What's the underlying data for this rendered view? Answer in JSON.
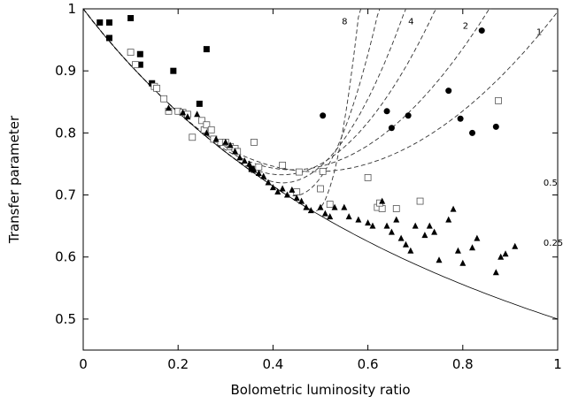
{
  "chart_data": {
    "type": "scatter",
    "title": "",
    "xlabel": "Bolometric luminosity ratio",
    "ylabel": "Transfer parameter",
    "xlim": [
      0,
      1
    ],
    "ylim": [
      0.45,
      1.0
    ],
    "x_ticks": [
      0,
      0.2,
      0.4,
      0.6,
      0.8,
      1
    ],
    "x_tick_labels": [
      "0",
      "0.2",
      "0.4",
      "0.6",
      "0.8",
      "1"
    ],
    "y_ticks": [
      0.5,
      0.6,
      0.7,
      0.8,
      0.9,
      1
    ],
    "y_tick_labels": [
      "0.5",
      "0.6",
      "0.7",
      "0.8",
      "0.9",
      "1"
    ],
    "grid": false,
    "series": [
      {
        "marker": "filled-square",
        "points": [
          [
            0.035,
            0.978
          ],
          [
            0.055,
            0.978
          ],
          [
            0.1,
            0.985
          ],
          [
            0.055,
            0.953
          ],
          [
            0.12,
            0.927
          ],
          [
            0.12,
            0.91
          ],
          [
            0.26,
            0.935
          ],
          [
            0.19,
            0.9
          ],
          [
            0.145,
            0.88
          ],
          [
            0.245,
            0.847
          ],
          [
            0.355,
            0.742
          ]
        ]
      },
      {
        "marker": "open-square",
        "points": [
          [
            0.1,
            0.93
          ],
          [
            0.11,
            0.91
          ],
          [
            0.15,
            0.875
          ],
          [
            0.155,
            0.872
          ],
          [
            0.17,
            0.855
          ],
          [
            0.18,
            0.835
          ],
          [
            0.2,
            0.835
          ],
          [
            0.21,
            0.833
          ],
          [
            0.22,
            0.83
          ],
          [
            0.23,
            0.793
          ],
          [
            0.25,
            0.82
          ],
          [
            0.255,
            0.805
          ],
          [
            0.26,
            0.813
          ],
          [
            0.27,
            0.805
          ],
          [
            0.275,
            0.79
          ],
          [
            0.29,
            0.785
          ],
          [
            0.3,
            0.785
          ],
          [
            0.31,
            0.778
          ],
          [
            0.32,
            0.775
          ],
          [
            0.325,
            0.77
          ],
          [
            0.36,
            0.785
          ],
          [
            0.37,
            0.745
          ],
          [
            0.42,
            0.748
          ],
          [
            0.455,
            0.737
          ],
          [
            0.505,
            0.738
          ],
          [
            0.45,
            0.705
          ],
          [
            0.5,
            0.71
          ],
          [
            0.52,
            0.685
          ],
          [
            0.6,
            0.728
          ],
          [
            0.62,
            0.68
          ],
          [
            0.63,
            0.678
          ],
          [
            0.66,
            0.678
          ],
          [
            0.71,
            0.69
          ],
          [
            0.625,
            0.687
          ],
          [
            0.875,
            0.852
          ]
        ]
      },
      {
        "marker": "filled-circle",
        "points": [
          [
            0.505,
            0.828
          ],
          [
            0.64,
            0.835
          ],
          [
            0.65,
            0.808
          ],
          [
            0.685,
            0.828
          ],
          [
            0.77,
            0.868
          ],
          [
            0.84,
            0.965
          ],
          [
            0.795,
            0.823
          ],
          [
            0.82,
            0.8
          ],
          [
            0.87,
            0.81
          ]
        ]
      },
      {
        "marker": "filled-triangle",
        "points": [
          [
            0.18,
            0.84
          ],
          [
            0.21,
            0.833
          ],
          [
            0.22,
            0.826
          ],
          [
            0.24,
            0.83
          ],
          [
            0.26,
            0.8
          ],
          [
            0.28,
            0.79
          ],
          [
            0.3,
            0.785
          ],
          [
            0.31,
            0.78
          ],
          [
            0.32,
            0.77
          ],
          [
            0.33,
            0.76
          ],
          [
            0.34,
            0.755
          ],
          [
            0.35,
            0.75
          ],
          [
            0.36,
            0.74
          ],
          [
            0.37,
            0.735
          ],
          [
            0.38,
            0.73
          ],
          [
            0.39,
            0.72
          ],
          [
            0.4,
            0.712
          ],
          [
            0.41,
            0.705
          ],
          [
            0.42,
            0.71
          ],
          [
            0.43,
            0.7
          ],
          [
            0.44,
            0.708
          ],
          [
            0.45,
            0.695
          ],
          [
            0.46,
            0.69
          ],
          [
            0.47,
            0.68
          ],
          [
            0.48,
            0.675
          ],
          [
            0.5,
            0.68
          ],
          [
            0.51,
            0.67
          ],
          [
            0.52,
            0.665
          ],
          [
            0.53,
            0.68
          ],
          [
            0.55,
            0.68
          ],
          [
            0.56,
            0.665
          ],
          [
            0.58,
            0.66
          ],
          [
            0.6,
            0.655
          ],
          [
            0.61,
            0.65
          ],
          [
            0.63,
            0.69
          ],
          [
            0.64,
            0.65
          ],
          [
            0.65,
            0.64
          ],
          [
            0.66,
            0.66
          ],
          [
            0.67,
            0.63
          ],
          [
            0.68,
            0.62
          ],
          [
            0.69,
            0.61
          ],
          [
            0.7,
            0.65
          ],
          [
            0.72,
            0.635
          ],
          [
            0.73,
            0.65
          ],
          [
            0.74,
            0.64
          ],
          [
            0.75,
            0.595
          ],
          [
            0.77,
            0.66
          ],
          [
            0.78,
            0.677
          ],
          [
            0.79,
            0.61
          ],
          [
            0.8,
            0.59
          ],
          [
            0.82,
            0.615
          ],
          [
            0.83,
            0.63
          ],
          [
            0.87,
            0.575
          ],
          [
            0.88,
            0.6
          ],
          [
            0.89,
            0.605
          ],
          [
            0.91,
            0.617
          ]
        ]
      }
    ],
    "curves": [
      {
        "label": "8",
        "type": "dashed"
      },
      {
        "label": "4",
        "type": "dashed"
      },
      {
        "label": "2",
        "type": "dashed"
      },
      {
        "label": "1",
        "type": "dashed"
      },
      {
        "label": "0.5",
        "type": "dashed"
      },
      {
        "label": "0.25",
        "type": "dashed"
      },
      {
        "label": "",
        "type": "solid"
      }
    ],
    "colors": {
      "ink": "#000000",
      "background": "#ffffff"
    }
  }
}
